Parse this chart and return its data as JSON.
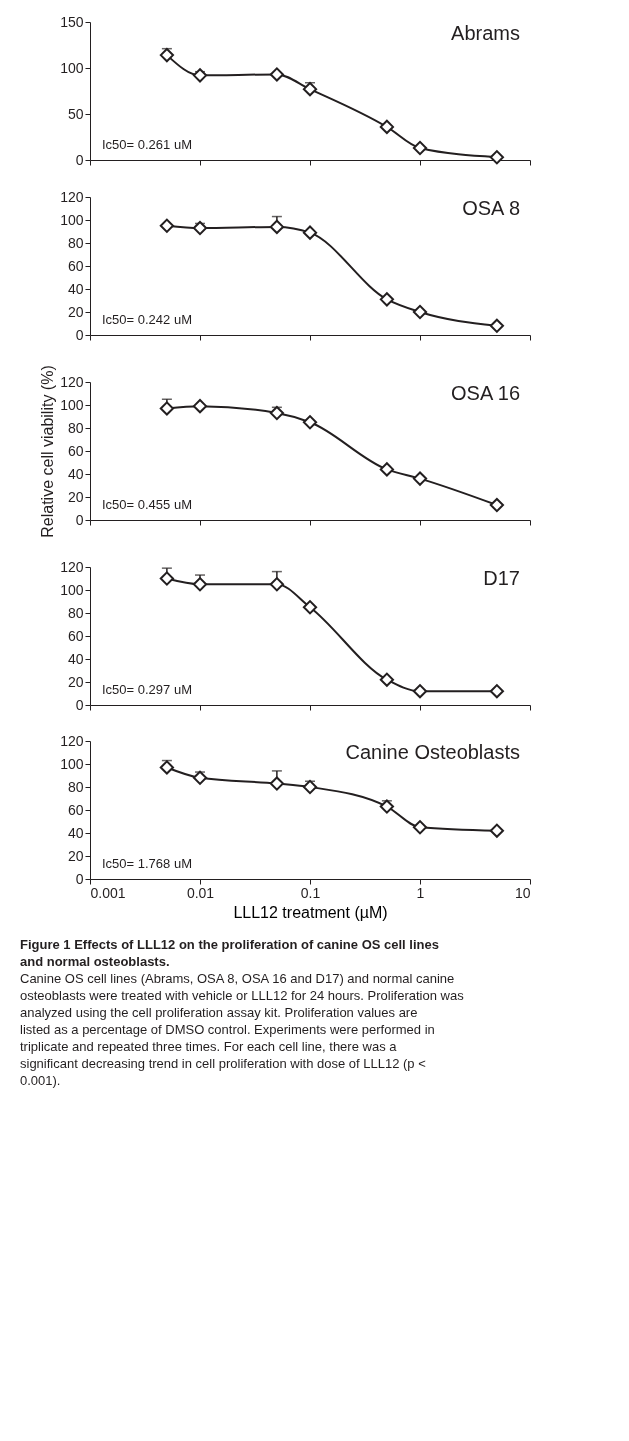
{
  "chart_data": [
    {
      "type": "line",
      "title": "Abrams",
      "x": [
        0.005,
        0.01,
        0.05,
        0.1,
        0.5,
        1,
        5
      ],
      "values": [
        114,
        92,
        93,
        77,
        36,
        13,
        3
      ],
      "errors": [
        [
          114,
          121
        ],
        [
          92,
          96
        ],
        null,
        [
          77,
          84
        ],
        null,
        null,
        null
      ],
      "color": "#231f20",
      "marker": "diamond",
      "line_style": "solid",
      "log": "x",
      "xlim": [
        0.001,
        10
      ],
      "xticks": [
        0.001,
        0.01,
        0.1,
        1,
        10
      ],
      "ylim": [
        0,
        150
      ],
      "yticks": [
        0,
        50,
        100,
        150
      ],
      "tick_labels": "y",
      "grid": false,
      "annotations": [
        "Ic50=  0.261 uM"
      ]
    },
    {
      "type": "line",
      "title": "OSA 8",
      "x": [
        0.005,
        0.01,
        0.05,
        0.1,
        0.5,
        1,
        5
      ],
      "values": [
        95,
        93,
        94,
        89,
        31,
        20,
        8
      ],
      "errors": [
        null,
        [
          93,
          97
        ],
        [
          94,
          103
        ],
        null,
        null,
        null,
        null
      ],
      "color": "#231f20",
      "marker": "diamond",
      "line_style": "solid",
      "log": "x",
      "xlim": [
        0.001,
        10
      ],
      "xticks": [
        0.001,
        0.01,
        0.1,
        1,
        10
      ],
      "ylim": [
        0,
        120
      ],
      "yticks": [
        0,
        20,
        40,
        60,
        80,
        100,
        120
      ],
      "tick_labels": "y",
      "grid": false,
      "annotations": [
        "Ic50= 0.242 uM"
      ]
    },
    {
      "type": "line",
      "title": "OSA 16",
      "ylabel": "Relative cell viability (%)",
      "x": [
        0.005,
        0.01,
        0.05,
        0.1,
        0.5,
        1,
        5
      ],
      "values": [
        97,
        99,
        93,
        85,
        44,
        36,
        13
      ],
      "errors": [
        [
          97,
          105
        ],
        null,
        [
          93,
          98
        ],
        null,
        null,
        null,
        null
      ],
      "color": "#231f20",
      "marker": "diamond",
      "line_style": "solid",
      "log": "x",
      "xlim": [
        0.001,
        10
      ],
      "xticks": [
        0.001,
        0.01,
        0.1,
        1,
        10
      ],
      "ylim": [
        0,
        120
      ],
      "yticks": [
        0,
        20,
        40,
        60,
        80,
        100,
        120
      ],
      "tick_labels": "y",
      "grid": false,
      "annotations": [
        "Ic50= 0.455 uM"
      ]
    },
    {
      "type": "line",
      "title": "D17",
      "x": [
        0.005,
        0.01,
        0.05,
        0.1,
        0.5,
        1,
        5
      ],
      "values": [
        110,
        105,
        105,
        85,
        22,
        12,
        12
      ],
      "errors": [
        [
          110,
          119
        ],
        [
          105,
          113
        ],
        [
          105,
          116
        ],
        null,
        null,
        null,
        null
      ],
      "color": "#231f20",
      "marker": "diamond",
      "line_style": "solid",
      "log": "x",
      "xlim": [
        0.001,
        10
      ],
      "xticks": [
        0.001,
        0.01,
        0.1,
        1,
        10
      ],
      "ylim": [
        0,
        120
      ],
      "yticks": [
        0,
        20,
        40,
        60,
        80,
        100,
        120
      ],
      "tick_labels": "y",
      "grid": false,
      "annotations": [
        "Ic50= 0.297 uM"
      ]
    },
    {
      "type": "line",
      "title": "Canine Osteoblasts",
      "xlabel": "LLL12 treatment (µM)",
      "x": [
        0.005,
        0.01,
        0.05,
        0.1,
        0.5,
        1,
        5
      ],
      "values": [
        97,
        88,
        83,
        80,
        63,
        45,
        42
      ],
      "errors": [
        [
          97,
          103
        ],
        [
          88,
          93
        ],
        [
          83,
          94
        ],
        [
          80,
          85
        ],
        [
          63,
          68
        ],
        null,
        null
      ],
      "color": "#231f20",
      "marker": "diamond",
      "line_style": "solid",
      "log": "x",
      "xlim": [
        0.001,
        10
      ],
      "xticks": [
        0.001,
        0.01,
        0.1,
        1,
        10
      ],
      "ylim": [
        0,
        120
      ],
      "yticks": [
        0,
        20,
        40,
        60,
        80,
        100,
        120
      ],
      "grid": false,
      "annotations": [
        "Ic50= 1.768 uM",
        "Figure 1 Effects of LLL12 on the proliferation of canine OS cell lines and normal osteoblasts.",
        "Canine OS cell lines (Abrams, OSA 8, OSA 16 and D17) and normal canine osteoblasts were treated with vehicle or LLL12 for 24 hours. Proliferation was analyzed using the cell proliferation assay kit. Proliferation values are listed as a percentage of DMSO control. Experiments were performed in triplicate and repeated three times. For each cell line, there was a significant decreasing trend in cell proliferation with dose of LLL12 (p < 0.001)."
      ]
    }
  ]
}
